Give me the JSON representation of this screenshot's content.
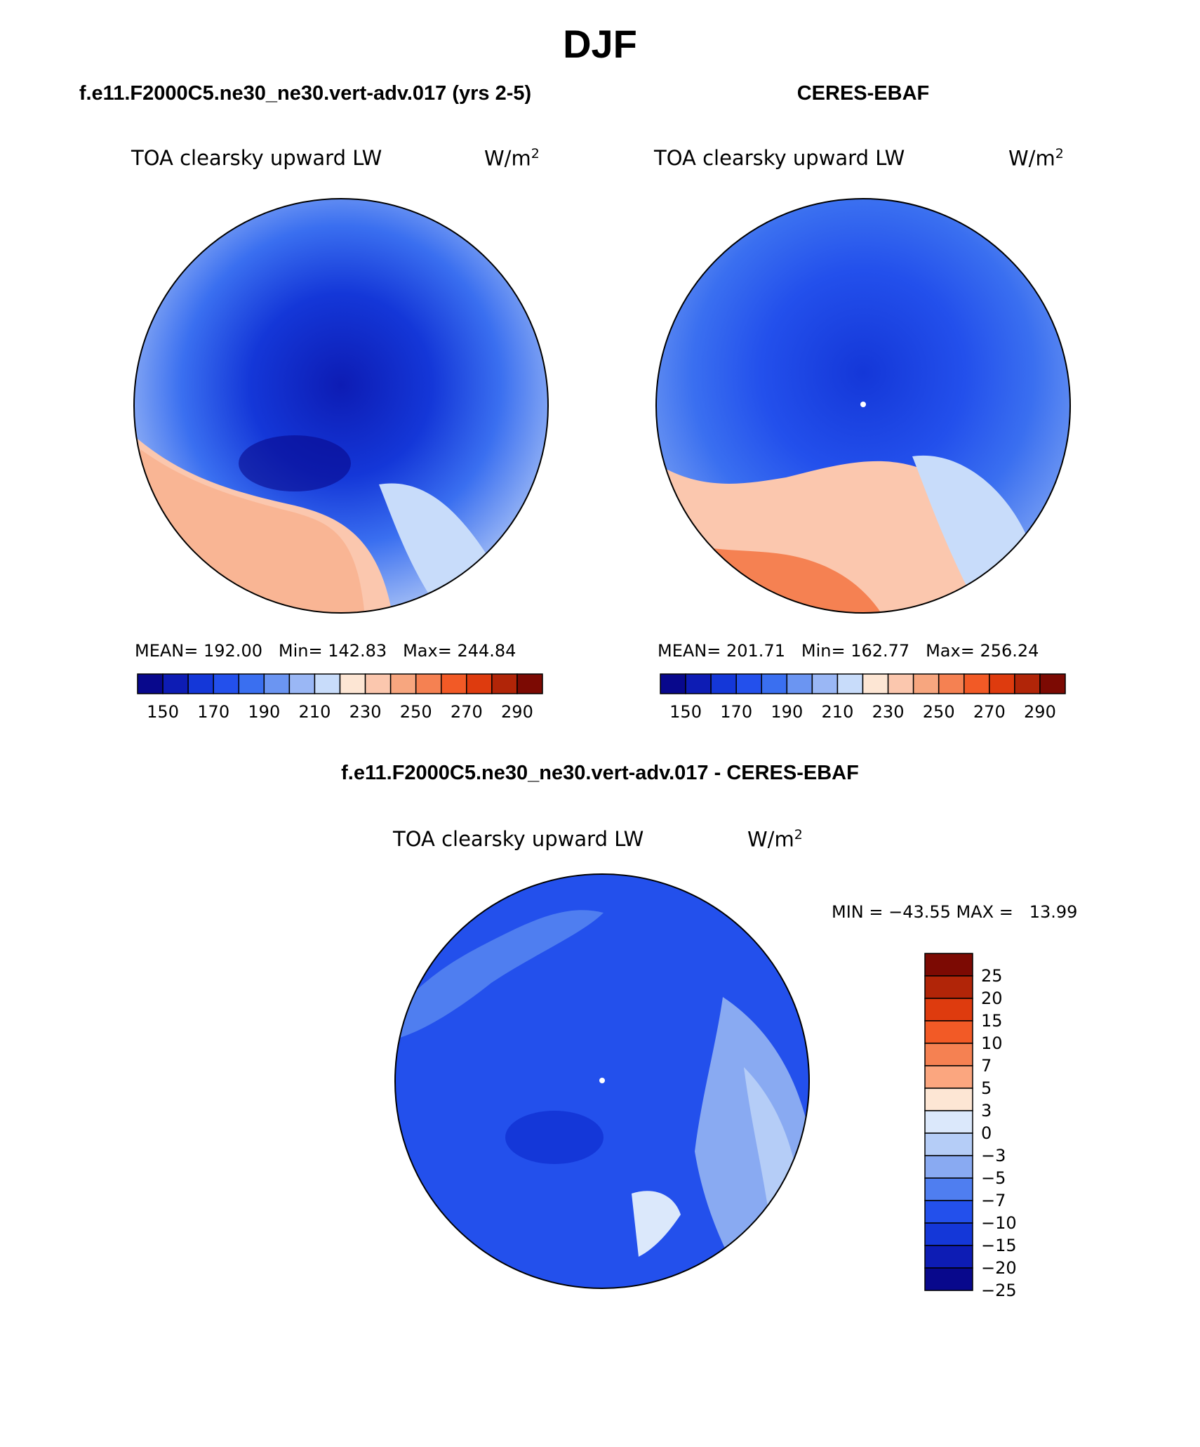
{
  "page": {
    "title": "DJF",
    "panels": [
      {
        "title": "f.e11.F2000C5.ne30_ne30.vert-adv.017 (yrs 2-5)",
        "variable": "TOA clearsky upward LW",
        "units_base": "W/m",
        "units_exp": "2",
        "stats": {
          "mean_label": "MEAN=",
          "mean": "192.00",
          "min_label": "Min=",
          "min": "142.83",
          "max_label": "Max=",
          "max": "244.84"
        }
      },
      {
        "title": "CERES-EBAF",
        "variable": "TOA clearsky upward LW",
        "units_base": "W/m",
        "units_exp": "2",
        "stats": {
          "mean_label": "MEAN=",
          "mean": "201.71",
          "min_label": "Min=",
          "min": "162.77",
          "max_label": "Max=",
          "max": "256.24"
        }
      },
      {
        "title": "f.e11.F2000C5.ne30_ne30.vert-adv.017 - CERES-EBAF",
        "variable": "TOA clearsky upward LW",
        "units_base": "W/m",
        "units_exp": "2",
        "minmax": "MIN = −43.55 MAX =   13.99"
      }
    ],
    "colorbar_main": {
      "colors": [
        "#08088c",
        "#0d1cb4",
        "#1437d8",
        "#2350ec",
        "#3a6ff0",
        "#6b95f2",
        "#9ab7f5",
        "#c8dcfa",
        "#fde6d4",
        "#fbc7ae",
        "#f7a67f",
        "#f58152",
        "#f25a26",
        "#de3b0e",
        "#b12508",
        "#7c0a03"
      ],
      "labels": [
        "150",
        "170",
        "190",
        "210",
        "230",
        "250",
        "270",
        "290"
      ]
    },
    "colorbar_diff": {
      "colors": [
        "#7c0a03",
        "#b12508",
        "#de3b0e",
        "#f25a26",
        "#f58152",
        "#fba67f",
        "#fde6d4",
        "#dbe8fb",
        "#b5cdf7",
        "#89aaf2",
        "#4f7ef0",
        "#2350ec",
        "#1437d8",
        "#0d1cb4",
        "#08088c"
      ],
      "labels": [
        "25",
        "20",
        "15",
        "10",
        "7",
        "5",
        "3",
        "0",
        "−3",
        "−5",
        "−7",
        "−10",
        "−15",
        "−20",
        "−25"
      ]
    }
  }
}
